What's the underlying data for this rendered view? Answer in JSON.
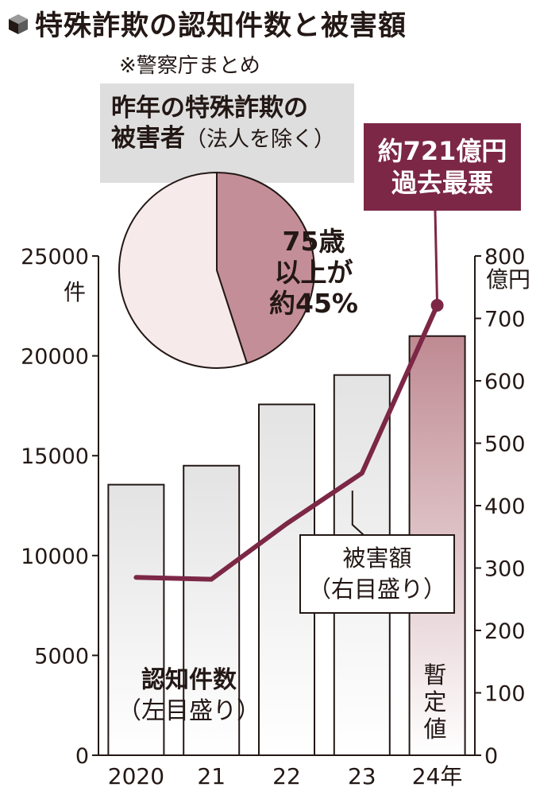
{
  "title": "特殊詐欺の認知件数と被害額",
  "source": "※警察庁まとめ",
  "pie": {
    "title_line1": "昨年の特殊詐欺の",
    "title_line2_main": "被害者",
    "title_line2_sub": "（法人を除く）",
    "label_line1": "75歳",
    "label_line2": "以上が",
    "label_line3": "約45%"
  },
  "callout": {
    "line1": "約721億円",
    "line2": "過去最悪"
  },
  "line_label": {
    "line1": "被害額",
    "line2": "（右目盛り）"
  },
  "bar_label": {
    "line1": "認知件数",
    "line2": "（左目盛り）"
  },
  "provisional_label": "暫定値",
  "left_unit": "件",
  "right_unit": "億円",
  "colors": {
    "line": "#7c2746",
    "callout_bg": "#7c2746",
    "pie_highlight": "#c48e98",
    "pie_rest": "#f6ebea",
    "bar_top": "#e3e3e3",
    "bar_top_last": "#bf8a92",
    "bar_bottom": "#ffffff"
  },
  "chart_data": {
    "type": "bar",
    "categories": [
      "2020",
      "21",
      "22",
      "23",
      "24年"
    ],
    "x_ticks": [
      "2020",
      "21",
      "22",
      "23",
      "24年"
    ],
    "left_axis": {
      "ylim": [
        0,
        25000
      ],
      "ticks": [
        "0",
        "5000",
        "10000",
        "15000",
        "20000",
        "25000"
      ],
      "unit": "件"
    },
    "right_axis": {
      "ylim": [
        0,
        800
      ],
      "ticks": [
        "0",
        "100",
        "200",
        "300",
        "400",
        "500",
        "600",
        "700",
        "800"
      ],
      "unit": "億円"
    },
    "series": [
      {
        "type": "bar",
        "axis": "left",
        "values": [
          13550,
          14500,
          17570,
          19040,
          20990
        ]
      },
      {
        "type": "line",
        "axis": "right",
        "values": [
          285,
          282,
          371,
          452,
          721
        ]
      }
    ],
    "pie": {
      "slices": [
        {
          "label": "75歳以上",
          "value": 45
        },
        {
          "label": "",
          "value": 55
        }
      ]
    },
    "grid": false
  }
}
